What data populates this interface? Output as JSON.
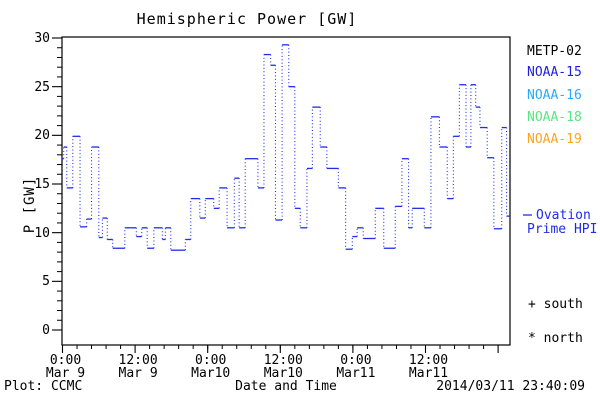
{
  "title": "Hemispheric Power [GW]",
  "axes": {
    "y": {
      "label": "P [GW]",
      "tick_values": [
        0,
        5,
        10,
        15,
        20,
        25,
        30
      ],
      "minor_step_gw": 1,
      "range": [
        0,
        30
      ]
    },
    "x": {
      "label": "Date and Time",
      "tick_hours": [
        0,
        12,
        24,
        36,
        48,
        60,
        72
      ],
      "tick_labels": [
        {
          "time": "0:00",
          "date": "Mar 9"
        },
        {
          "time": "12:00",
          "date": "Mar 9"
        },
        {
          "time": "0:00",
          "date": "Mar10"
        },
        {
          "time": "12:00",
          "date": "Mar10"
        },
        {
          "time": "0:00",
          "date": "Mar11"
        },
        {
          "time": "12:00",
          "date": "Mar11"
        },
        {
          "time": "",
          "date": ""
        }
      ],
      "minor_step_hours": 2.4
    }
  },
  "legend": {
    "satellites": [
      {
        "label": "METP-02",
        "color": "#000000"
      },
      {
        "label": "NOAA-15",
        "color": "#1e1ee6"
      },
      {
        "label": "NOAA-16",
        "color": "#28aafa"
      },
      {
        "label": "NOAA-18",
        "color": "#5ae682"
      },
      {
        "label": "NOAA-19",
        "color": "#faa51e"
      }
    ],
    "line_series": {
      "label_line1": "Ovation",
      "label_line2": "Prime HPI",
      "color": "#1e2ee6"
    },
    "markers": [
      {
        "symbol": "+",
        "label": "south"
      },
      {
        "symbol": "*",
        "label": "north"
      }
    ]
  },
  "footer": {
    "left": "Plot: CCMC",
    "right": "2014/03/11 23:40:09"
  },
  "chart_data": {
    "type": "line",
    "step": true,
    "title": "Hemispheric Power [GW]",
    "xlabel": "Date and Time",
    "ylabel": "P [GW]",
    "ylim": [
      0,
      30
    ],
    "x_unit": "hours since 2014-03-09 00:00 UT",
    "xlim_hours": [
      -0.6,
      74.0
    ],
    "grid": false,
    "legend_position": "right-outside",
    "series": [
      {
        "name": "Ovation Prime HPI",
        "color": "#1e2ee6",
        "steps_time_gw": [
          [
            -0.6,
            17.6
          ],
          [
            0.2,
            18.8
          ],
          [
            0.7,
            14.6
          ],
          [
            1.7,
            19.9
          ],
          [
            2.9,
            10.6
          ],
          [
            4.0,
            11.4
          ],
          [
            4.8,
            18.8
          ],
          [
            6.0,
            9.5
          ],
          [
            6.6,
            11.5
          ],
          [
            7.4,
            9.3
          ],
          [
            8.3,
            8.4
          ],
          [
            10.3,
            10.5
          ],
          [
            12.2,
            9.6
          ],
          [
            13.1,
            10.5
          ],
          [
            14.0,
            8.4
          ],
          [
            15.1,
            10.5
          ],
          [
            16.5,
            9.3
          ],
          [
            17.0,
            10.5
          ],
          [
            17.9,
            8.2
          ],
          [
            20.3,
            9.3
          ],
          [
            21.2,
            13.5
          ],
          [
            22.7,
            11.5
          ],
          [
            23.6,
            13.5
          ],
          [
            25.0,
            12.5
          ],
          [
            25.9,
            14.6
          ],
          [
            27.2,
            10.5
          ],
          [
            28.4,
            15.6
          ],
          [
            29.2,
            10.5
          ],
          [
            30.2,
            17.6
          ],
          [
            32.3,
            14.6
          ],
          [
            33.3,
            28.3
          ],
          [
            34.4,
            27.2
          ],
          [
            35.2,
            11.3
          ],
          [
            36.3,
            29.3
          ],
          [
            37.4,
            25.0
          ],
          [
            38.4,
            12.5
          ],
          [
            39.3,
            10.5
          ],
          [
            40.4,
            16.6
          ],
          [
            41.3,
            22.9
          ],
          [
            42.6,
            18.8
          ],
          [
            43.7,
            16.6
          ],
          [
            45.6,
            14.6
          ],
          [
            46.8,
            8.3
          ],
          [
            47.9,
            9.6
          ],
          [
            48.7,
            10.5
          ],
          [
            49.7,
            9.4
          ],
          [
            51.7,
            12.5
          ],
          [
            53.1,
            8.4
          ],
          [
            55.0,
            12.7
          ],
          [
            56.1,
            17.6
          ],
          [
            57.2,
            10.5
          ],
          [
            57.8,
            12.5
          ],
          [
            59.8,
            10.5
          ],
          [
            60.9,
            21.9
          ],
          [
            62.3,
            18.8
          ],
          [
            63.6,
            13.5
          ],
          [
            64.6,
            19.9
          ],
          [
            65.6,
            25.2
          ],
          [
            66.7,
            18.8
          ],
          [
            67.5,
            25.2
          ],
          [
            68.3,
            22.9
          ],
          [
            69.0,
            20.8
          ],
          [
            70.2,
            17.7
          ],
          [
            71.3,
            10.4
          ],
          [
            72.6,
            20.8
          ],
          [
            73.4,
            11.7
          ]
        ]
      }
    ]
  },
  "geometry_note": "plot box spans 0-30 GW vertically and Mar 9 00:00 to ~Mar 12 02:00 horizontally"
}
